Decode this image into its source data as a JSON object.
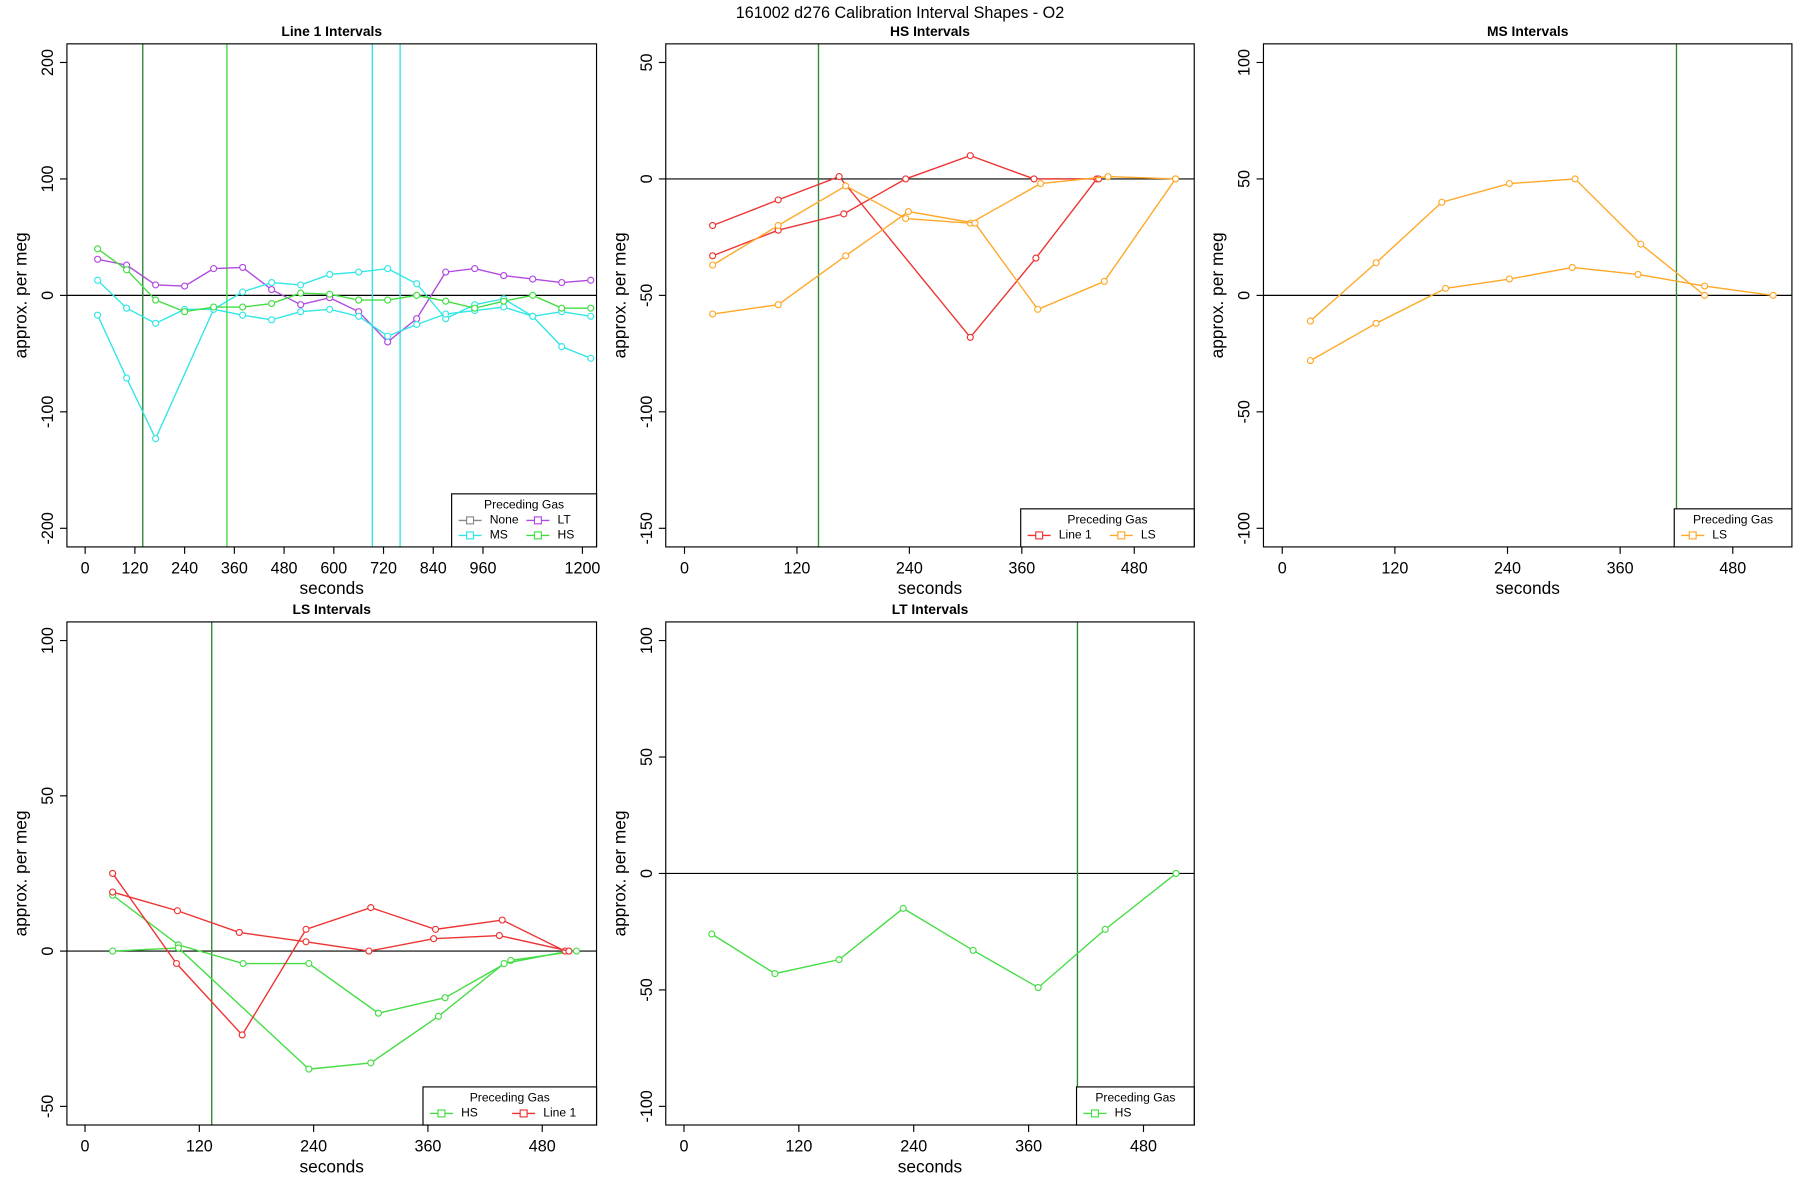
{
  "title": "161002   d276   Calibration Interval Shapes - O2",
  "chart_data": [
    {
      "type": "line",
      "title": "Line 1 Intervals",
      "xlabel": "seconds",
      "ylabel": "approx. per meg",
      "xlim": [
        -44,
        1234
      ],
      "xticks": [
        0,
        120,
        240,
        360,
        480,
        600,
        720,
        840,
        960,
        1200
      ],
      "ylim": [
        -216,
        216
      ],
      "yticks": [
        -200,
        -100,
        0,
        100,
        200
      ],
      "hline": 0,
      "vlines": [
        {
          "value": 139,
          "color": "#2e8b3a"
        },
        {
          "value": 342,
          "color": "#44dd44"
        },
        {
          "value": 693,
          "color": "#33e6e6"
        },
        {
          "value": 760,
          "color": "#33e6e6"
        }
      ],
      "legend_title": "Preceding Gas",
      "legend": "bottomright",
      "series": [
        {
          "name": "None",
          "color": "#888888",
          "lines": []
        },
        {
          "name": "LT",
          "color": "#b04ae0",
          "lines": [
            {
              "x": [
                30,
                100,
                170,
                240,
                310,
                380,
                450,
                520,
                590,
                660,
                730,
                800,
                870,
                940,
                1010,
                1080,
                1150,
                1220
              ],
              "values": [
                31,
                26,
                9,
                8,
                23,
                24,
                5,
                -8,
                -2,
                -14,
                -40,
                -20,
                20,
                23,
                17,
                14,
                11,
                13
              ]
            }
          ]
        },
        {
          "name": "MS",
          "color": "#33e6e6",
          "lines": [
            {
              "x": [
                30,
                100,
                170,
                310,
                380,
                450,
                520,
                590,
                660,
                730,
                800,
                870,
                940,
                1010,
                1080,
                1150,
                1220
              ],
              "values": [
                -17,
                -71,
                -123,
                -12,
                3,
                11,
                9,
                18,
                20,
                23,
                10,
                -20,
                -8,
                -3,
                -18,
                -44,
                -54
              ]
            },
            {
              "x": [
                30,
                100,
                170,
                240,
                310,
                380,
                450,
                520,
                590,
                660,
                730,
                800,
                870,
                940,
                1010,
                1080,
                1150,
                1220
              ],
              "values": [
                13,
                -11,
                -24,
                -12,
                -12,
                -17,
                -21,
                -14,
                -12,
                -18,
                -35,
                -25,
                -16,
                -13,
                -10,
                -18,
                -14,
                -18
              ]
            }
          ]
        },
        {
          "name": "HS",
          "color": "#44dd44",
          "lines": [
            {
              "x": [
                30,
                100,
                170,
                240,
                310,
                380,
                450,
                520,
                590,
                660,
                730,
                800,
                870,
                940,
                1010,
                1080,
                1150,
                1220
              ],
              "values": [
                40,
                22,
                -4,
                -14,
                -10,
                -10,
                -7,
                2,
                1,
                -4,
                -4,
                0,
                -5,
                -11,
                -5,
                0,
                -11,
                -11
              ]
            }
          ]
        }
      ]
    },
    {
      "type": "line",
      "title": "HS Intervals",
      "xlabel": "seconds",
      "ylabel": "approx. per meg",
      "xlim": [
        -20,
        544
      ],
      "xticks": [
        0,
        120,
        240,
        360,
        480
      ],
      "ylim": [
        -158,
        58
      ],
      "yticks": [
        -150,
        -100,
        -50,
        0,
        50
      ],
      "hline": 0,
      "vlines": [
        {
          "value": 143,
          "color": "#2e8b3a"
        }
      ],
      "legend_title": "Preceding Gas",
      "legend": "bottomright",
      "series": [
        {
          "name": "Line 1",
          "color": "#ee3333",
          "lines": [
            {
              "x": [
                30,
                100,
                165,
                305,
                375,
                440
              ],
              "values": [
                -20,
                -9,
                1,
                -68,
                -34,
                0
              ]
            },
            {
              "x": [
                30,
                100,
                170,
                236,
                305,
                373,
                442
              ],
              "values": [
                -33,
                -22,
                -15,
                0,
                10,
                0,
                0
              ]
            }
          ]
        },
        {
          "name": "LS",
          "color": "#ffa828",
          "lines": [
            {
              "x": [
                30,
                100,
                172,
                236,
                305,
                380,
                452,
                524
              ],
              "values": [
                -37,
                -20,
                -3,
                -17,
                -19,
                -2,
                1,
                0
              ]
            },
            {
              "x": [
                30,
                100,
                172,
                239,
                310,
                377,
                448,
                524
              ],
              "values": [
                -58,
                -54,
                -33,
                -14,
                -19,
                -56,
                -44,
                0
              ]
            }
          ]
        }
      ]
    },
    {
      "type": "line",
      "title": "MS Intervals",
      "xlabel": "seconds",
      "ylabel": "approx. per meg",
      "xlim": [
        -20,
        543
      ],
      "xticks": [
        0,
        120,
        240,
        360,
        480
      ],
      "ylim": [
        -108,
        108
      ],
      "yticks": [
        -100,
        -50,
        0,
        50,
        100
      ],
      "hline": 0,
      "vlines": [
        {
          "value": 420,
          "color": "#2e8b3a"
        }
      ],
      "legend_title": "Preceding Gas",
      "legend": "bottomright",
      "series": [
        {
          "name": "LS",
          "color": "#ffa828",
          "lines": [
            {
              "x": [
                30,
                100,
                170,
                242,
                312,
                382,
                450
              ],
              "values": [
                -11,
                14,
                40,
                48,
                50,
                22,
                0
              ]
            },
            {
              "x": [
                30,
                100,
                174,
                242,
                309,
                379,
                450,
                523
              ],
              "values": [
                -28,
                -12,
                3,
                7,
                12,
                9,
                4,
                0
              ]
            }
          ]
        }
      ]
    },
    {
      "type": "line",
      "title": "LS Intervals",
      "xlabel": "seconds",
      "ylabel": "approx. per meg",
      "xlim": [
        -19,
        537
      ],
      "xticks": [
        0,
        120,
        240,
        360,
        480
      ],
      "ylim": [
        -56,
        106
      ],
      "yticks": [
        -50,
        0,
        50,
        100
      ],
      "hline": 0,
      "vlines": [
        {
          "value": 133,
          "color": "#2e8b3a"
        }
      ],
      "legend_title": "Preceding Gas",
      "legend": "bottomright",
      "series": [
        {
          "name": "HS",
          "color": "#44dd44",
          "lines": [
            {
              "x": [
                29,
                98,
                166,
                235,
                308,
                378,
                447,
                516
              ],
              "values": [
                18,
                2,
                -4,
                -4,
                -20,
                -15,
                -3,
                0
              ]
            },
            {
              "x": [
                29,
                98,
                235,
                300,
                371,
                440,
                508
              ],
              "values": [
                0,
                1,
                -38,
                -36,
                -21,
                -4,
                0
              ]
            }
          ]
        },
        {
          "name": "Line 1",
          "color": "#ee3333",
          "lines": [
            {
              "x": [
                29,
                96,
                165,
                232,
                300,
                368,
                438,
                504
              ],
              "values": [
                25,
                -4,
                -27,
                7,
                14,
                7,
                10,
                0
              ]
            },
            {
              "x": [
                29,
                97,
                162,
                232,
                298,
                366,
                435,
                508
              ],
              "values": [
                19,
                13,
                6,
                3,
                0,
                4,
                5,
                0
              ]
            }
          ]
        }
      ]
    },
    {
      "type": "line",
      "title": "LT Intervals",
      "xlabel": "seconds",
      "ylabel": "approx. per meg",
      "xlim": [
        -19,
        533
      ],
      "xticks": [
        0,
        120,
        240,
        360,
        480
      ],
      "ylim": [
        -108,
        108
      ],
      "yticks": [
        -100,
        -50,
        0,
        50,
        100
      ],
      "hline": 0,
      "vlines": [
        {
          "value": 411,
          "color": "#2e8b3a"
        }
      ],
      "legend_title": "Preceding Gas",
      "legend": "bottomright",
      "series": [
        {
          "name": "HS",
          "color": "#44dd44",
          "lines": [
            {
              "x": [
                29,
                95,
                162,
                229,
                302,
                370,
                440,
                514
              ],
              "values": [
                -26,
                -43,
                -37,
                -15,
                -33,
                -49,
                -24,
                0
              ]
            }
          ]
        }
      ]
    }
  ]
}
